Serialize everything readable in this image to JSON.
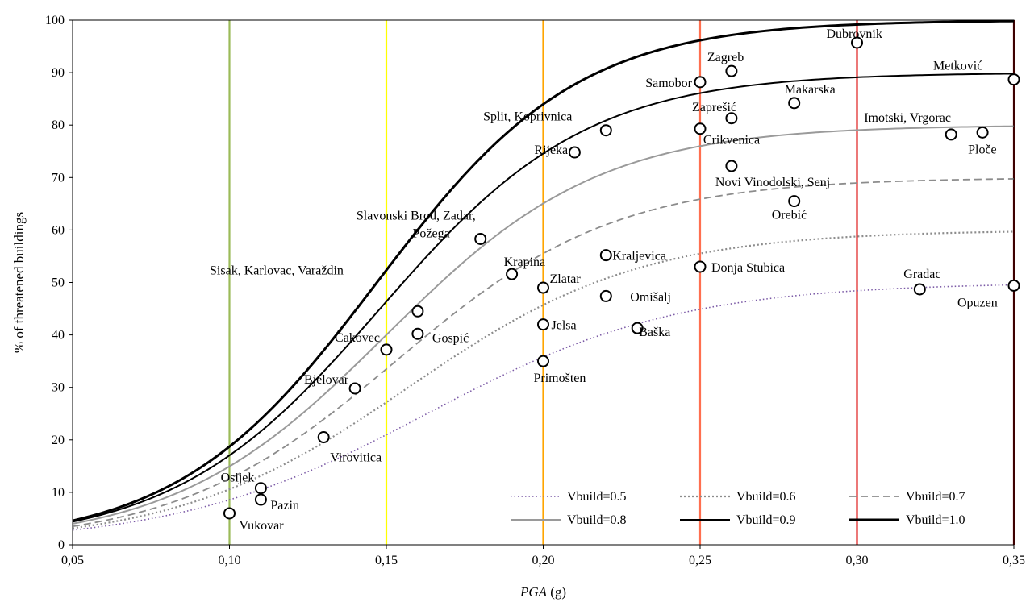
{
  "chart_data": {
    "type": "line",
    "xlabel_italic": "PGA",
    "xlabel_unit": "(g)",
    "ylabel": "% of threatened buildings",
    "xlim": [
      0.05,
      0.35
    ],
    "ylim": [
      0,
      100
    ],
    "x_ticks": [
      "0,05",
      "0,10",
      "0,15",
      "0,20",
      "0,25",
      "0,30",
      "0,35"
    ],
    "x_tick_values": [
      0.05,
      0.1,
      0.15,
      0.2,
      0.25,
      0.3,
      0.35
    ],
    "y_ticks": [
      "0",
      "10",
      "20",
      "30",
      "40",
      "50",
      "60",
      "70",
      "80",
      "90",
      "100"
    ],
    "y_tick_values": [
      0,
      10,
      20,
      30,
      40,
      50,
      60,
      70,
      80,
      90,
      100
    ],
    "grid": false,
    "legend_position": "bottom-right",
    "vertical_lines": [
      {
        "x": 0.1,
        "color": "#9bbb59"
      },
      {
        "x": 0.15,
        "color": "#ffff00"
      },
      {
        "x": 0.2,
        "color": "#ffa500"
      },
      {
        "x": 0.25,
        "color": "#ff6f4f"
      },
      {
        "x": 0.3,
        "color": "#e02020"
      },
      {
        "x": 0.35,
        "color": "#7a0000"
      }
    ],
    "series": [
      {
        "name": "Vbuild=0.5",
        "color": "#7b5aa6",
        "dash": "1.5,3",
        "width": 1.6,
        "max": 50,
        "x0": 0.163,
        "k": 0.04
      },
      {
        "name": "Vbuild=0.6",
        "color": "#8c8c8c",
        "dash": "2,3",
        "width": 2.2,
        "max": 60,
        "x0": 0.157,
        "k": 0.037
      },
      {
        "name": "Vbuild=0.7",
        "color": "#8c8c8c",
        "dash": "9,5",
        "width": 1.8,
        "max": 70,
        "x0": 0.153,
        "k": 0.035
      },
      {
        "name": "Vbuild=0.8",
        "color": "#9a9a9a",
        "dash": "",
        "width": 2.0,
        "max": 80,
        "x0": 0.15,
        "k": 0.034
      },
      {
        "name": "Vbuild=0.9",
        "color": "#000000",
        "dash": "",
        "width": 2.0,
        "max": 90,
        "x0": 0.148,
        "k": 0.033
      },
      {
        "name": "Vbuild=1.0",
        "color": "#000000",
        "dash": "",
        "width": 3.0,
        "max": 100,
        "x0": 0.147,
        "k": 0.032
      }
    ],
    "points": [
      {
        "x": 0.1,
        "y": 6,
        "label": "Vukovar"
      },
      {
        "x": 0.11,
        "y": 10.8,
        "label": "Osijek"
      },
      {
        "x": 0.11,
        "y": 8.6,
        "label": "Pazin"
      },
      {
        "x": 0.13,
        "y": 20.5,
        "label": "Virovitica"
      },
      {
        "x": 0.14,
        "y": 29.8,
        "label": "Bjelovar"
      },
      {
        "x": 0.15,
        "y": 37.2,
        "label": "Čakovec"
      },
      {
        "x": 0.16,
        "y": 44.5,
        "label": "Sisak, Karlovac, Varaždin"
      },
      {
        "x": 0.16,
        "y": 40.2,
        "label": "Gospić"
      },
      {
        "x": 0.18,
        "y": 58.3,
        "label": "Slavonski Brod, Zadar,"
      },
      {
        "x": 0.19,
        "y": 51.6,
        "label": "Krapina"
      },
      {
        "x": 0.2,
        "y": 49.0,
        "label": "Zlatar"
      },
      {
        "x": 0.2,
        "y": 42.0,
        "label": "Jelsa"
      },
      {
        "x": 0.2,
        "y": 35.0,
        "label": "Primošten"
      },
      {
        "x": 0.21,
        "y": 74.8,
        "label": "Rijeka"
      },
      {
        "x": 0.22,
        "y": 79.0,
        "label": "Split, Koprivnica"
      },
      {
        "x": 0.22,
        "y": 55.2,
        "label": "Kraljevica"
      },
      {
        "x": 0.22,
        "y": 47.4,
        "label": "Omišalj"
      },
      {
        "x": 0.23,
        "y": 41.3,
        "label": "Baška"
      },
      {
        "x": 0.25,
        "y": 88.2,
        "label": "Samobor"
      },
      {
        "x": 0.25,
        "y": 79.3,
        "label": "Zaprešić"
      },
      {
        "x": 0.25,
        "y": 53.0,
        "label": "Donja Stubica"
      },
      {
        "x": 0.26,
        "y": 90.3,
        "label": "Zagreb"
      },
      {
        "x": 0.26,
        "y": 81.3,
        "label": "Crikvenica"
      },
      {
        "x": 0.26,
        "y": 72.2,
        "label": "Novi Vinodolski, Senj"
      },
      {
        "x": 0.28,
        "y": 84.2,
        "label": "Makarska"
      },
      {
        "x": 0.28,
        "y": 65.5,
        "label": "Orebić"
      },
      {
        "x": 0.3,
        "y": 95.7,
        "label": "Dubrovnik"
      },
      {
        "x": 0.32,
        "y": 48.7,
        "label": "Gradac"
      },
      {
        "x": 0.33,
        "y": 78.2,
        "label": "Imotski, Vrgorac"
      },
      {
        "x": 0.34,
        "y": 78.6,
        "label": "Ploče"
      },
      {
        "x": 0.35,
        "y": 88.7,
        "label": "Metković"
      },
      {
        "x": 0.35,
        "y": 49.4,
        "label": "Opuzen"
      }
    ],
    "extra_labels": [
      {
        "text": "Požega"
      }
    ]
  }
}
